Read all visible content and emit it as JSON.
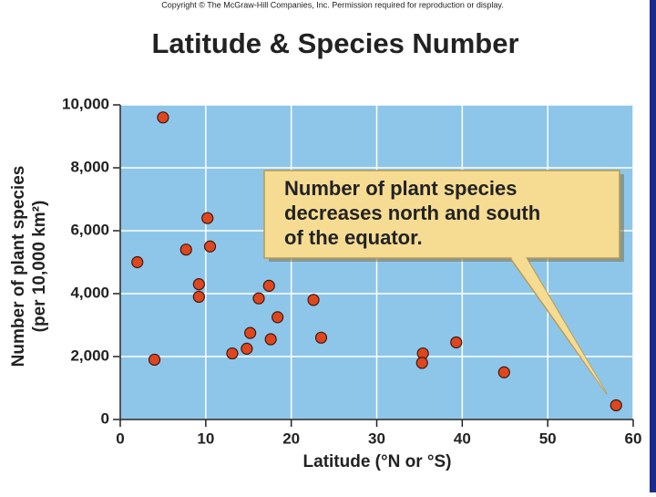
{
  "copyright": "Copyright © The McGraw-Hill Companies, Inc. Permission required for reproduction or display.",
  "chart_data": {
    "type": "scatter",
    "title": "Latitude & Species Number",
    "x_label": "Latitude (°N or °S)",
    "y_label": [
      "Number of plant species",
      "(per 10,000 km²)"
    ],
    "annotation": [
      "Number of plant species",
      "decreases north and south",
      "of the equator."
    ],
    "x": [
      5,
      2,
      4,
      7.7,
      10.2,
      10.5,
      9.2,
      9.2,
      13.1,
      14.8,
      15.2,
      16.2,
      17.4,
      17.6,
      18.4,
      22.6,
      23.5,
      35.4,
      35.3,
      39.3,
      44.9,
      58
    ],
    "values": [
      9600,
      5000,
      1900,
      5400,
      6400,
      5500,
      4300,
      3900,
      2100,
      2250,
      2750,
      3850,
      4250,
      2550,
      3250,
      3800,
      2600,
      2100,
      1800,
      2450,
      1500,
      450
    ],
    "color": "#e0461e",
    "xlim": [
      0,
      60
    ],
    "xticks": [
      0,
      10,
      20,
      30,
      40,
      50,
      60
    ],
    "ylim": [
      0,
      10000
    ],
    "yticks": [
      0,
      {
        "value": 2000,
        "label": "2,000"
      },
      {
        "value": 4000,
        "label": "4,000"
      },
      {
        "value": 6000,
        "label": "6,000"
      },
      {
        "value": 8000,
        "label": "8,000"
      },
      {
        "value": 10000,
        "label": "10,000"
      }
    ],
    "grid": true
  }
}
